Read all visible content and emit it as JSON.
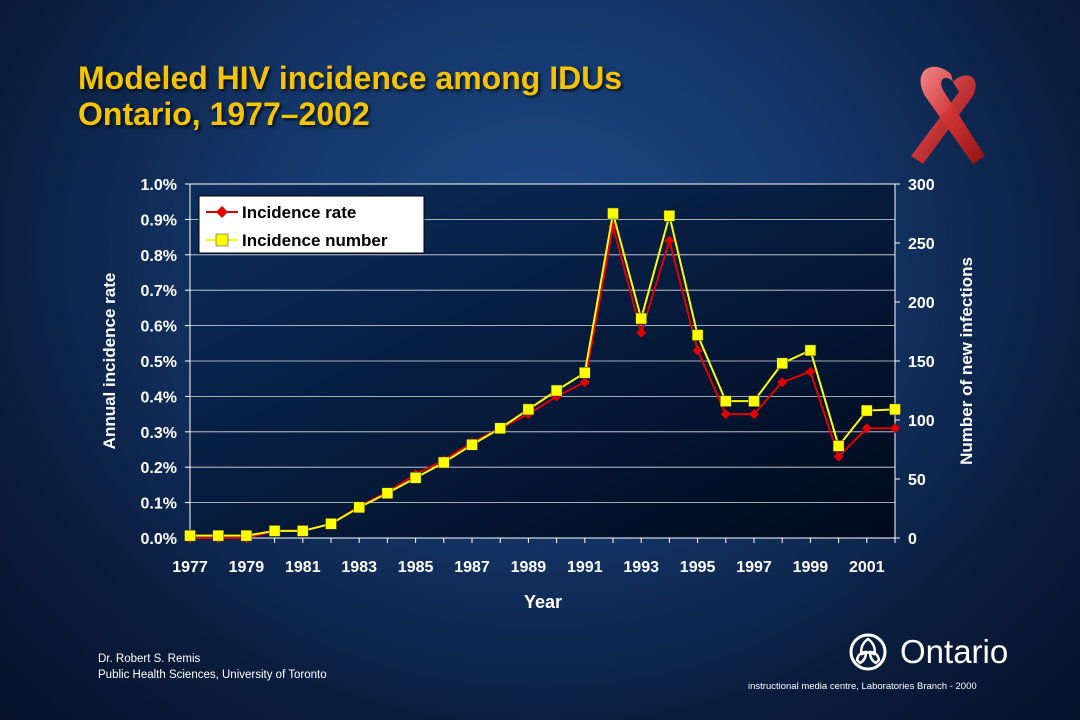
{
  "slide": {
    "title_line1": "Modeled HIV incidence among IDUs",
    "title_line2": "Ontario, 1977–2002",
    "author_line1": "Dr. Robert S. Remis",
    "author_line2": "Public Health Sciences, University of Toronto",
    "logo_text": "Ontario",
    "footer": "instructional media centre, Laboratories Branch - 2000"
  },
  "icons": {
    "ribbon": "red-awareness-ribbon-icon",
    "logo": "ontario-trillium-logo-icon"
  },
  "colors": {
    "title": "#f5c400",
    "rate_series": "#e00000",
    "number_series": "#ffff00",
    "plot_background": "#001433"
  },
  "chart_data": {
    "type": "line",
    "title": "",
    "xlabel": "Year",
    "ylabel_left": "Annual incidence rate",
    "ylabel_right": "Number of new infections",
    "x": [
      1977,
      1978,
      1979,
      1980,
      1981,
      1982,
      1983,
      1984,
      1985,
      1986,
      1987,
      1988,
      1989,
      1990,
      1991,
      1992,
      1993,
      1994,
      1995,
      1996,
      1997,
      1998,
      1999,
      2000,
      2001,
      2002
    ],
    "x_tick_labels": [
      "1977",
      "1979",
      "1981",
      "1983",
      "1985",
      "1987",
      "1989",
      "1991",
      "1993",
      "1995",
      "1997",
      "1999",
      "2001"
    ],
    "y_left_ticks": [
      "0.0%",
      "0.1%",
      "0.2%",
      "0.3%",
      "0.4%",
      "0.5%",
      "0.6%",
      "0.7%",
      "0.8%",
      "0.9%",
      "1.0%"
    ],
    "y_right_ticks": [
      "0",
      "50",
      "100",
      "150",
      "200",
      "250",
      "300"
    ],
    "ylim_left": [
      0,
      1.0
    ],
    "ylim_right": [
      0,
      300
    ],
    "grid": "horizontal",
    "legend_position": "top-left",
    "series": [
      {
        "name": "Incidence rate",
        "axis": "left",
        "marker": "diamond",
        "values": [
          0.0,
          0.0,
          0.0,
          0.02,
          0.02,
          0.04,
          0.09,
          0.13,
          0.18,
          0.22,
          0.27,
          0.31,
          0.35,
          0.4,
          0.44,
          0.88,
          0.58,
          0.84,
          0.53,
          0.35,
          0.35,
          0.44,
          0.47,
          0.23,
          0.31,
          0.31
        ]
      },
      {
        "name": "Incidence number",
        "axis": "right",
        "marker": "square",
        "values": [
          2,
          2,
          2,
          6,
          6,
          12,
          26,
          38,
          51,
          64,
          79,
          93,
          109,
          125,
          140,
          275,
          186,
          273,
          172,
          116,
          116,
          148,
          159,
          78,
          108,
          109
        ]
      }
    ]
  }
}
